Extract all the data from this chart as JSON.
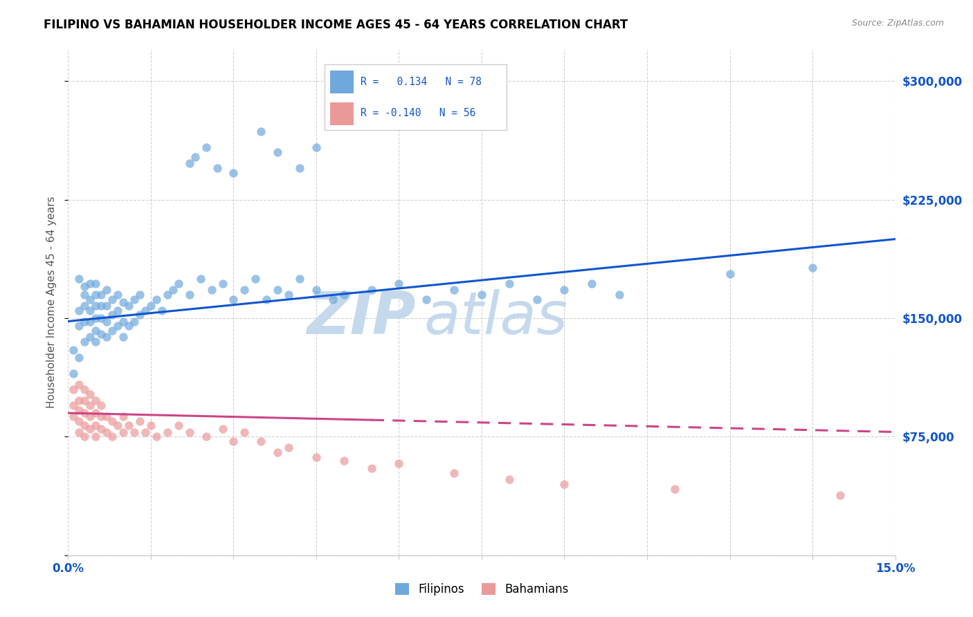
{
  "title": "FILIPINO VS BAHAMIAN HOUSEHOLDER INCOME AGES 45 - 64 YEARS CORRELATION CHART",
  "source": "Source: ZipAtlas.com",
  "ylabel": "Householder Income Ages 45 - 64 years",
  "x_min": 0.0,
  "x_max": 0.15,
  "y_min": 0,
  "y_max": 320000,
  "y_ticks": [
    0,
    75000,
    150000,
    225000,
    300000
  ],
  "y_tick_labels": [
    "",
    "$75,000",
    "$150,000",
    "$225,000",
    "$300,000"
  ],
  "filipino_color": "#6fa8dc",
  "bahamian_color": "#ea9999",
  "filipino_line_color": "#1155cc",
  "bahamian_line_color": "#cc4488",
  "watermark_zip": "ZIP",
  "watermark_atlas": "atlas",
  "watermark_color": "#c5d9ed",
  "background_color": "#ffffff",
  "grid_color": "#cccccc",
  "title_color": "#000000",
  "axis_label_color": "#1155cc",
  "filipino_R": 0.134,
  "bahamian_R": -0.14,
  "filipino_N": 78,
  "bahamian_N": 56,
  "filipino_points_x": [
    0.001,
    0.001,
    0.002,
    0.002,
    0.002,
    0.002,
    0.003,
    0.003,
    0.003,
    0.003,
    0.003,
    0.004,
    0.004,
    0.004,
    0.004,
    0.004,
    0.005,
    0.005,
    0.005,
    0.005,
    0.005,
    0.005,
    0.006,
    0.006,
    0.006,
    0.006,
    0.007,
    0.007,
    0.007,
    0.007,
    0.008,
    0.008,
    0.008,
    0.009,
    0.009,
    0.009,
    0.01,
    0.01,
    0.01,
    0.011,
    0.011,
    0.012,
    0.012,
    0.013,
    0.013,
    0.014,
    0.015,
    0.016,
    0.017,
    0.018,
    0.019,
    0.02,
    0.022,
    0.024,
    0.026,
    0.028,
    0.03,
    0.032,
    0.034,
    0.036,
    0.038,
    0.04,
    0.042,
    0.045,
    0.048,
    0.05,
    0.055,
    0.06,
    0.065,
    0.07,
    0.075,
    0.08,
    0.085,
    0.09,
    0.095,
    0.1,
    0.12,
    0.135
  ],
  "filipino_points_y": [
    130000,
    115000,
    125000,
    145000,
    155000,
    175000,
    135000,
    148000,
    158000,
    165000,
    170000,
    138000,
    148000,
    155000,
    162000,
    172000,
    135000,
    142000,
    150000,
    158000,
    165000,
    172000,
    140000,
    150000,
    158000,
    165000,
    138000,
    148000,
    158000,
    168000,
    142000,
    152000,
    162000,
    145000,
    155000,
    165000,
    138000,
    148000,
    160000,
    145000,
    158000,
    148000,
    162000,
    152000,
    165000,
    155000,
    158000,
    162000,
    155000,
    165000,
    168000,
    172000,
    165000,
    175000,
    168000,
    172000,
    162000,
    168000,
    175000,
    162000,
    168000,
    165000,
    175000,
    168000,
    162000,
    165000,
    168000,
    172000,
    162000,
    168000,
    165000,
    172000,
    162000,
    168000,
    172000,
    165000,
    178000,
    182000
  ],
  "filipino_high_points_x": [
    0.022,
    0.023,
    0.025,
    0.027,
    0.03,
    0.035,
    0.038,
    0.042,
    0.045
  ],
  "filipino_high_points_y": [
    248000,
    252000,
    258000,
    245000,
    242000,
    268000,
    255000,
    245000,
    258000
  ],
  "bahamian_points_x": [
    0.001,
    0.001,
    0.001,
    0.002,
    0.002,
    0.002,
    0.002,
    0.002,
    0.003,
    0.003,
    0.003,
    0.003,
    0.003,
    0.004,
    0.004,
    0.004,
    0.004,
    0.005,
    0.005,
    0.005,
    0.005,
    0.006,
    0.006,
    0.006,
    0.007,
    0.007,
    0.008,
    0.008,
    0.009,
    0.01,
    0.01,
    0.011,
    0.012,
    0.013,
    0.014,
    0.015,
    0.016,
    0.018,
    0.02,
    0.022,
    0.025,
    0.028,
    0.03,
    0.032,
    0.035,
    0.038,
    0.04,
    0.045,
    0.05,
    0.055,
    0.06,
    0.07,
    0.08,
    0.09,
    0.11,
    0.14
  ],
  "bahamian_points_y": [
    105000,
    95000,
    88000,
    108000,
    98000,
    92000,
    85000,
    78000,
    105000,
    98000,
    90000,
    82000,
    75000,
    102000,
    95000,
    88000,
    80000,
    98000,
    90000,
    82000,
    75000,
    95000,
    88000,
    80000,
    88000,
    78000,
    85000,
    75000,
    82000,
    88000,
    78000,
    82000,
    78000,
    85000,
    78000,
    82000,
    75000,
    78000,
    82000,
    78000,
    75000,
    80000,
    72000,
    78000,
    72000,
    65000,
    68000,
    62000,
    60000,
    55000,
    58000,
    52000,
    48000,
    45000,
    42000,
    38000
  ],
  "bahamian_line_start_x": 0.0,
  "bahamian_line_end_solid": 0.055,
  "bahamian_line_end_x": 0.15
}
